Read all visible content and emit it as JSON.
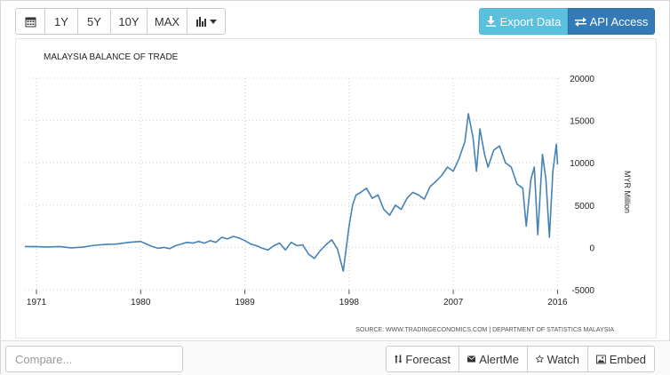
{
  "toolbar": {
    "buttons": [
      {
        "id": "calendar",
        "icon": "calendar-icon"
      },
      {
        "id": "1y",
        "label": "1Y"
      },
      {
        "id": "5y",
        "label": "5Y"
      },
      {
        "id": "10y",
        "label": "10Y"
      },
      {
        "id": "max",
        "label": "MAX"
      },
      {
        "id": "chart-type",
        "icon": "bar-chart-icon"
      }
    ],
    "export_label": "Export Data",
    "api_label": "API Access"
  },
  "chart_data": {
    "type": "line",
    "title": "MALAYSIA BALANCE OF TRADE",
    "ylabel": "MYR Million",
    "source": "SOURCE: WWW.TRADINGECONOMICS.COM | DEPARTMENT OF STATISTICS MALAYSIA",
    "xlim": [
      1970,
      2016.2
    ],
    "ylim": [
      -5000,
      20000
    ],
    "x_ticks": [
      "1971",
      "1980",
      "1989",
      "1998",
      "2007",
      "2016"
    ],
    "y_ticks": [
      "20000",
      "15000",
      "10000",
      "5000",
      "0",
      "-5000"
    ],
    "grid": true,
    "series": [
      {
        "color": "#4682b4",
        "points": [
          [
            1970.0,
            100
          ],
          [
            1971.0,
            80
          ],
          [
            1972.0,
            50
          ],
          [
            1973.0,
            100
          ],
          [
            1974.0,
            -50
          ],
          [
            1975.0,
            30
          ],
          [
            1976.0,
            250
          ],
          [
            1977.0,
            350
          ],
          [
            1978.0,
            400
          ],
          [
            1979.0,
            600
          ],
          [
            1980.0,
            700
          ],
          [
            1980.5,
            400
          ],
          [
            1981.0,
            100
          ],
          [
            1981.5,
            -100
          ],
          [
            1982.0,
            0
          ],
          [
            1982.5,
            -150
          ],
          [
            1983.0,
            200
          ],
          [
            1983.5,
            400
          ],
          [
            1984.0,
            600
          ],
          [
            1984.5,
            500
          ],
          [
            1985.0,
            700
          ],
          [
            1985.5,
            500
          ],
          [
            1986.0,
            800
          ],
          [
            1986.5,
            600
          ],
          [
            1987.0,
            1200
          ],
          [
            1987.5,
            1000
          ],
          [
            1988.0,
            1300
          ],
          [
            1988.5,
            1100
          ],
          [
            1989.0,
            800
          ],
          [
            1989.5,
            400
          ],
          [
            1990.0,
            200
          ],
          [
            1990.5,
            -100
          ],
          [
            1991.0,
            -300
          ],
          [
            1991.5,
            200
          ],
          [
            1992.0,
            500
          ],
          [
            1992.5,
            -300
          ],
          [
            1993.0,
            600
          ],
          [
            1993.5,
            200
          ],
          [
            1994.0,
            300
          ],
          [
            1994.5,
            -800
          ],
          [
            1995.0,
            -1300
          ],
          [
            1995.5,
            -400
          ],
          [
            1996.0,
            300
          ],
          [
            1996.5,
            900
          ],
          [
            1997.0,
            -200
          ],
          [
            1997.5,
            -2800
          ],
          [
            1998.0,
            2500
          ],
          [
            1998.3,
            5000
          ],
          [
            1998.6,
            6200
          ],
          [
            1999.0,
            6500
          ],
          [
            1999.5,
            7000
          ],
          [
            2000.0,
            5800
          ],
          [
            2000.5,
            6200
          ],
          [
            2001.0,
            4500
          ],
          [
            2001.5,
            3800
          ],
          [
            2002.0,
            5000
          ],
          [
            2002.5,
            4500
          ],
          [
            2003.0,
            5800
          ],
          [
            2003.5,
            6500
          ],
          [
            2004.0,
            6200
          ],
          [
            2004.5,
            5700
          ],
          [
            2005.0,
            7200
          ],
          [
            2005.5,
            7800
          ],
          [
            2006.0,
            8500
          ],
          [
            2006.5,
            9500
          ],
          [
            2007.0,
            9000
          ],
          [
            2007.5,
            10500
          ],
          [
            2008.0,
            12500
          ],
          [
            2008.3,
            15800
          ],
          [
            2008.7,
            13000
          ],
          [
            2009.0,
            9000
          ],
          [
            2009.3,
            14000
          ],
          [
            2009.7,
            11000
          ],
          [
            2010.0,
            9500
          ],
          [
            2010.5,
            11500
          ],
          [
            2011.0,
            12000
          ],
          [
            2011.5,
            10000
          ],
          [
            2012.0,
            9500
          ],
          [
            2012.5,
            7500
          ],
          [
            2013.0,
            7000
          ],
          [
            2013.3,
            2500
          ],
          [
            2013.7,
            8000
          ],
          [
            2014.0,
            9500
          ],
          [
            2014.3,
            1500
          ],
          [
            2014.7,
            11000
          ],
          [
            2015.0,
            8000
          ],
          [
            2015.3,
            1200
          ],
          [
            2015.6,
            9000
          ],
          [
            2015.9,
            12200
          ],
          [
            2016.0,
            9800
          ]
        ]
      }
    ]
  },
  "bottom": {
    "compare_placeholder": "Compare...",
    "buttons": [
      {
        "id": "forecast",
        "label": "Forecast",
        "icon": "sort-arrows-icon"
      },
      {
        "id": "alertme",
        "label": "AlertMe",
        "icon": "envelope-icon"
      },
      {
        "id": "watch",
        "label": "Watch",
        "icon": "star-icon"
      },
      {
        "id": "embed",
        "label": "Embed",
        "icon": "image-icon"
      }
    ]
  }
}
